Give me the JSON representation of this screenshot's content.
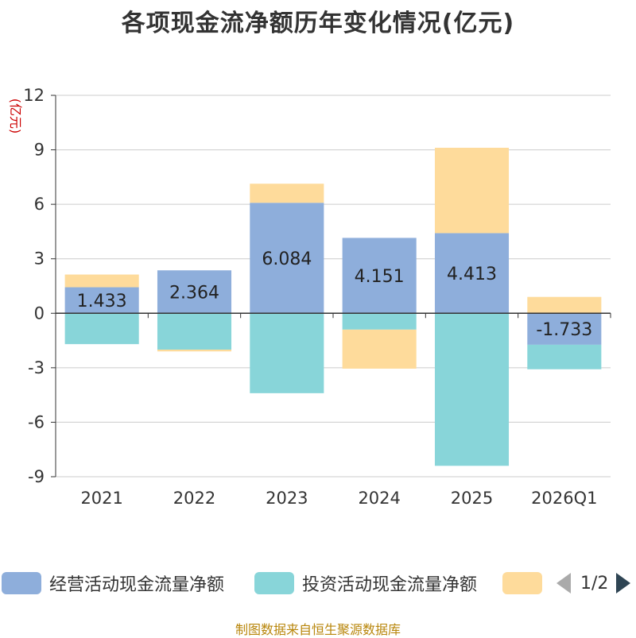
{
  "title": "各项现金流净额历年变化情况(亿元)",
  "source": "制图数据来自恒生聚源数据库",
  "legend": {
    "pager_text": "1/2",
    "items": [
      {
        "label": "经营活动现金流量净额",
        "color": "#8eaedb"
      },
      {
        "label": "投资活动现金流量净额",
        "color": "#88d5d9"
      },
      {
        "label": "",
        "color": "#fedb9b"
      }
    ]
  },
  "chart_data": {
    "type": "bar",
    "stacked": true,
    "title": "各项现金流净额历年变化情况(亿元)",
    "ylabel": "(亿元)",
    "ylim": [
      -9,
      12
    ],
    "yticks": [
      -9,
      -6,
      -3,
      0,
      3,
      6,
      9,
      12
    ],
    "ytick_labels": [
      "-9",
      "-6",
      "-3",
      "0",
      "3",
      "6",
      "9",
      "12"
    ],
    "grid": true,
    "categories": [
      "2021",
      "2022",
      "2023",
      "2024",
      "2025",
      "2026Q1"
    ],
    "series": [
      {
        "name": "经营活动现金流量净额",
        "color": "#8eaedb",
        "values": [
          1.433,
          2.364,
          6.084,
          4.151,
          4.413,
          -1.733
        ],
        "labels": [
          "1.433",
          "2.364",
          "6.084",
          "4.151",
          "4.413",
          "-1.733"
        ]
      },
      {
        "name": "投资活动现金流量净额",
        "color": "#88d5d9",
        "values": [
          -1.7,
          -2.0,
          -4.4,
          -0.9,
          -8.4,
          -1.35
        ]
      },
      {
        "name": "",
        "color": "#fedb9b",
        "values": [
          0.7,
          -0.1,
          1.05,
          -2.15,
          4.7,
          0.9
        ]
      }
    ]
  }
}
